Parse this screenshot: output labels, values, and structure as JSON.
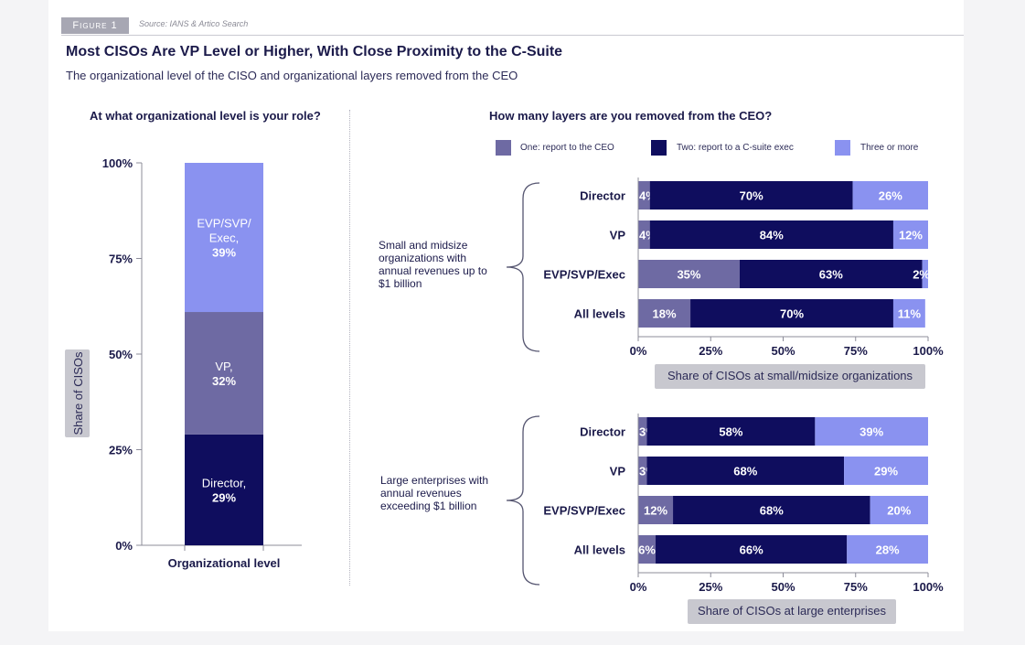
{
  "header": {
    "figure_label": "Figure 1",
    "source": "Source: IANS & Artico Search",
    "title": "Most CISOs Are VP Level or Higher, With Close Proximity to the C-Suite",
    "subtitle": "The organizational level of the CISO and organizational layers removed from the CEO"
  },
  "colors": {
    "dark": "#0f0d5e",
    "mid": "#6e6aa3",
    "light": "#8a92f0",
    "axis_box": "#c8c8cf"
  },
  "legend": [
    {
      "name": "One: report to the CEO",
      "color": "#6e6aa3"
    },
    {
      "name": "Two: report to a C-suite exec",
      "color": "#0f0d5e"
    },
    {
      "name": "Three or more",
      "color": "#8a92f0"
    }
  ],
  "chart_data": [
    {
      "type": "bar",
      "stacked": true,
      "title": "At what organizational level is your role?",
      "xlabel": "Organizational level",
      "ylabel": "Share of CISOs",
      "ylim": [
        0,
        100
      ],
      "yticks": [
        "0%",
        "25%",
        "50%",
        "75%",
        "100%"
      ],
      "segments": [
        {
          "name": "Director",
          "value": 29,
          "label": "Director,\n29%",
          "color": "#0f0d5e"
        },
        {
          "name": "VP",
          "value": 32,
          "label": "VP,\n32%",
          "color": "#6e6aa3"
        },
        {
          "name": "EVP/SVP/Exec",
          "value": 39,
          "label": "EVP/SVP/\nExec,\n39%",
          "color": "#8a92f0"
        }
      ]
    },
    {
      "type": "bar",
      "orientation": "horizontal",
      "stacked": true,
      "title": "How many layers are you removed from the CEO?",
      "group_label": "Small and midsize organizations with annual revenues up to $1 billion",
      "xlabel": "Share of CISOs at small/midsize organizations",
      "xlim": [
        0,
        100
      ],
      "xticks": [
        "0%",
        "25%",
        "50%",
        "75%",
        "100%"
      ],
      "categories": [
        "Director",
        "VP",
        "EVP/SVP/Exec",
        "All levels"
      ],
      "series": [
        {
          "name": "One: report to the CEO",
          "values": [
            4,
            4,
            35,
            18
          ],
          "labels": [
            "4%",
            "4%",
            "35%",
            "18%"
          ]
        },
        {
          "name": "Two: report to a C-suite exec",
          "values": [
            70,
            84,
            63,
            70
          ],
          "labels": [
            "70%",
            "84%",
            "63%",
            "70%"
          ]
        },
        {
          "name": "Three or more",
          "values": [
            26,
            12,
            2,
            11
          ],
          "labels": [
            "26%",
            "12%",
            "2%",
            "11%"
          ]
        }
      ]
    },
    {
      "type": "bar",
      "orientation": "horizontal",
      "stacked": true,
      "title": "How many layers are you removed from the CEO?",
      "group_label": "Large enterprises with annual revenues exceeding $1 billion",
      "xlabel": "Share of CISOs at large enterprises",
      "xlim": [
        0,
        100
      ],
      "xticks": [
        "0%",
        "25%",
        "50%",
        "75%",
        "100%"
      ],
      "categories": [
        "Director",
        "VP",
        "EVP/SVP/Exec",
        "All levels"
      ],
      "series": [
        {
          "name": "One: report to the CEO",
          "values": [
            3,
            3,
            12,
            6
          ],
          "labels": [
            "3%",
            "3%",
            "12%",
            "6%"
          ]
        },
        {
          "name": "Two: report to a C-suite exec",
          "values": [
            58,
            68,
            68,
            66
          ],
          "labels": [
            "58%",
            "68%",
            "68%",
            "66%"
          ]
        },
        {
          "name": "Three or more",
          "values": [
            39,
            29,
            20,
            28
          ],
          "labels": [
            "39%",
            "29%",
            "20%",
            "28%"
          ]
        }
      ]
    }
  ]
}
